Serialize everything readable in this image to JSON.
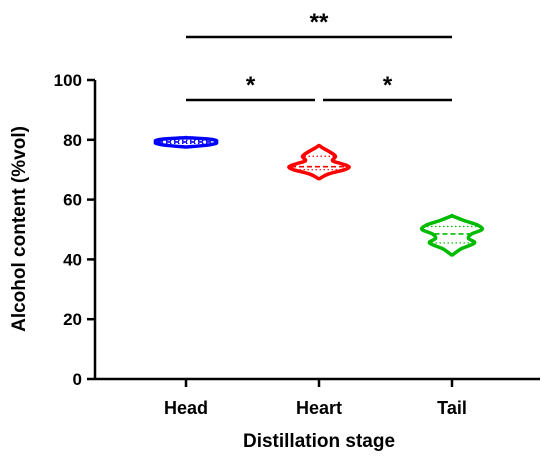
{
  "chart_data": {
    "type": "violin",
    "title": "",
    "xlabel": "Distillation stage",
    "ylabel": "Alcohol content (%vol)",
    "ylim": [
      0,
      100
    ],
    "yticks": [
      "0",
      "20",
      "40",
      "60",
      "80",
      "100"
    ],
    "grid": false,
    "categories": [
      "Head",
      "Heart",
      "Tail"
    ],
    "series": [
      {
        "category": "Head",
        "color": "#0000ff",
        "min": 77.6,
        "q1": 78.8,
        "median": 79.3,
        "q3": 79.8,
        "max": 80.7,
        "profile": [
          [
            77.6,
            0.02
          ],
          [
            78.2,
            0.7
          ],
          [
            78.8,
            1.0
          ],
          [
            79.3,
            1.0
          ],
          [
            79.8,
            1.0
          ],
          [
            80.3,
            0.7
          ],
          [
            80.7,
            0.02
          ]
        ]
      },
      {
        "category": "Heart",
        "color": "#ff0000",
        "min": 67.0,
        "q1": 70.0,
        "median": 71.0,
        "q3": 74.5,
        "max": 78.0,
        "profile": [
          [
            67.0,
            0.02
          ],
          [
            68.5,
            0.3
          ],
          [
            70.0,
            0.85
          ],
          [
            71.0,
            1.0
          ],
          [
            72.0,
            0.75
          ],
          [
            73.0,
            0.45
          ],
          [
            74.5,
            0.55
          ],
          [
            76.0,
            0.35
          ],
          [
            77.3,
            0.12
          ],
          [
            78.0,
            0.02
          ]
        ]
      },
      {
        "category": "Tail",
        "color": "#00bb00",
        "min": 41.5,
        "q1": 45.5,
        "median": 48.5,
        "q3": 51.0,
        "max": 54.5,
        "profile": [
          [
            41.5,
            0.02
          ],
          [
            43.5,
            0.3
          ],
          [
            45.5,
            0.75
          ],
          [
            47.0,
            0.55
          ],
          [
            48.5,
            0.65
          ],
          [
            50.0,
            1.0
          ],
          [
            51.5,
            0.85
          ],
          [
            53.0,
            0.4
          ],
          [
            54.5,
            0.02
          ]
        ]
      }
    ],
    "significance": [
      {
        "from": "Head",
        "to": "Tail",
        "label": "**",
        "level": 3
      },
      {
        "from": "Head",
        "to": "Heart",
        "label": "*",
        "level": 1
      },
      {
        "from": "Heart",
        "to": "Tail",
        "label": "*",
        "level": 1
      }
    ]
  }
}
